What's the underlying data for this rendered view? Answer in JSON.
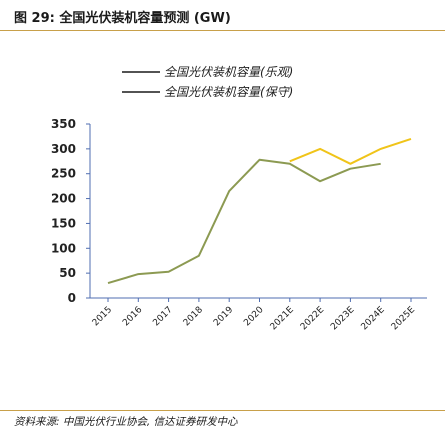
{
  "figure": {
    "title": "图 29: 全国光伏装机容量预测 (GW)",
    "source": "资料来源: 中国光伏行业协会, 信达证券研发中心"
  },
  "chart_data": {
    "type": "line",
    "title": "",
    "xlabel": "",
    "ylabel": "",
    "ylim": [
      0,
      350
    ],
    "yticks": [
      0,
      50,
      100,
      150,
      200,
      250,
      300,
      350
    ],
    "grid": false,
    "legend_position": "top-right",
    "x": [
      "2015",
      "2016",
      "2017",
      "2018",
      "2019",
      "2020",
      "2021E",
      "2022E",
      "2023E",
      "2024E",
      "2025E"
    ],
    "series": [
      {
        "name": "全国光伏装机容量(乐观)",
        "color": "#f0c419",
        "values": [
          null,
          null,
          null,
          null,
          null,
          null,
          275,
          300,
          270,
          300,
          320
        ]
      },
      {
        "name": "全国光伏装机容量(保守)",
        "color": "#8c9a52",
        "values": [
          30,
          48,
          53,
          85,
          215,
          278,
          270,
          235,
          260,
          270,
          null
        ]
      }
    ]
  }
}
